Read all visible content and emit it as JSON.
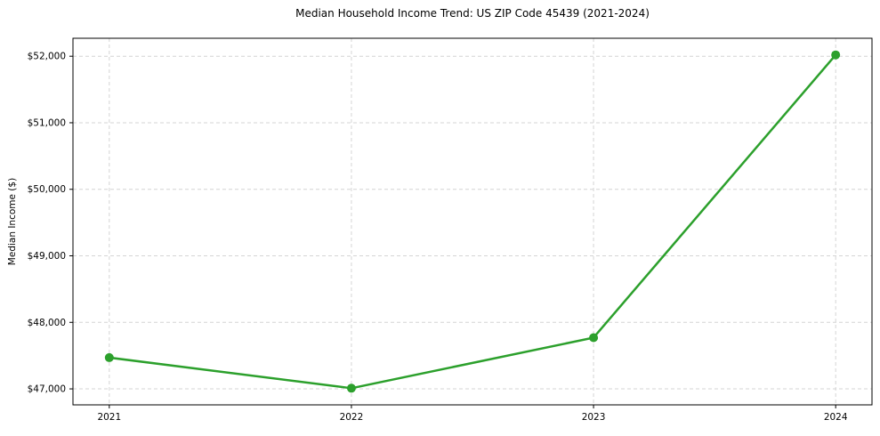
{
  "chart_data": {
    "type": "line",
    "title": "Median Household Income Trend: US ZIP Code 45439 (2021-2024)",
    "xlabel": "",
    "ylabel": "Median Income ($)",
    "x": [
      2021,
      2022,
      2023,
      2024
    ],
    "values": [
      47470,
      47010,
      47770,
      52020
    ],
    "x_tick_labels": [
      "2021",
      "2022",
      "2023",
      "2024"
    ],
    "y_ticks": [
      47000,
      48000,
      49000,
      50000,
      51000,
      52000
    ],
    "y_tick_labels": [
      "$47,000",
      "$48,000",
      "$49,000",
      "$50,000",
      "$51,000",
      "$52,000"
    ],
    "xlim": [
      2020.85,
      2024.15
    ],
    "ylim": [
      46760,
      52270
    ],
    "grid": true,
    "legend": "none",
    "line_color": "#2ca02c",
    "marker": "circle"
  }
}
